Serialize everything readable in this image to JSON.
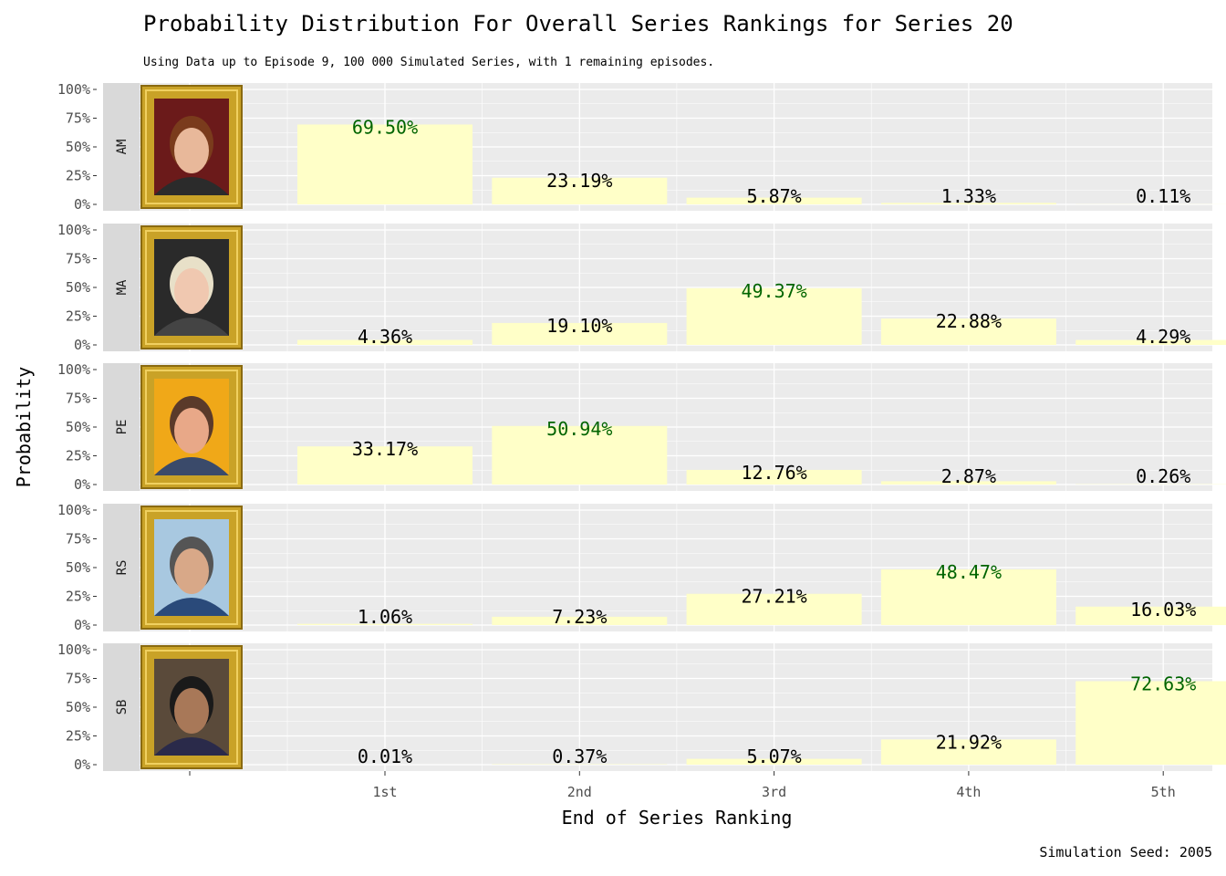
{
  "colors": {
    "panel_bg": "#ebebeb",
    "grid": "#ffffff",
    "bar_fill": "#ffffc8",
    "label_default": "#000000",
    "label_max": "#006400",
    "strip_bg": "#d9d9d9",
    "frame_gold": "#c9a227"
  },
  "chart_data": {
    "type": "bar",
    "title": "Probability Distribution For Overall Series Rankings for Series 20",
    "subtitle": "Using Data up to Episode 9, 100 000 Simulated Series, with 1 remaining episodes.",
    "xlabel": "End of Series Ranking",
    "ylabel": "Probability",
    "caption": "Simulation Seed: 2005",
    "categories": [
      "1st",
      "2nd",
      "3rd",
      "4th",
      "5th"
    ],
    "y_ticks": [
      "0%",
      "25%",
      "50%",
      "75%",
      "100%"
    ],
    "ylim": [
      0,
      100
    ],
    "series": [
      {
        "name": "AM",
        "values": [
          69.5,
          23.19,
          5.87,
          1.33,
          0.11
        ],
        "labels": [
          "69.50%",
          "23.19%",
          "5.87%",
          "1.33%",
          "0.11%"
        ],
        "max_index": 0
      },
      {
        "name": "MA",
        "values": [
          4.36,
          19.1,
          49.37,
          22.88,
          4.29
        ],
        "labels": [
          "4.36%",
          "19.10%",
          "49.37%",
          "22.88%",
          "4.29%"
        ],
        "max_index": 2
      },
      {
        "name": "PE",
        "values": [
          33.17,
          50.94,
          12.76,
          2.87,
          0.26
        ],
        "labels": [
          "33.17%",
          "50.94%",
          "12.76%",
          "2.87%",
          "0.26%"
        ],
        "max_index": 1
      },
      {
        "name": "RS",
        "values": [
          1.06,
          7.23,
          27.21,
          48.47,
          16.03
        ],
        "labels": [
          "1.06%",
          "7.23%",
          "27.21%",
          "48.47%",
          "16.03%"
        ],
        "max_index": 3
      },
      {
        "name": "SB",
        "values": [
          0.01,
          0.37,
          5.07,
          21.92,
          72.63
        ],
        "labels": [
          "0.01%",
          "0.37%",
          "5.07%",
          "21.92%",
          "72.63%"
        ],
        "max_index": 4
      }
    ],
    "portraits": [
      {
        "name": "AM",
        "bg": "#6b1a1a",
        "skin": "#e8b89a",
        "hair": "#7a3b1c",
        "shirt": "#2b2b2b"
      },
      {
        "name": "MA",
        "bg": "#2a2a2a",
        "skin": "#f0c8b0",
        "hair": "#e8e0c8",
        "shirt": "#444444"
      },
      {
        "name": "PE",
        "bg": "#f0a818",
        "skin": "#e8a888",
        "hair": "#5a3a2a",
        "shirt": "#3a4a6a"
      },
      {
        "name": "RS",
        "bg": "#a8c8e0",
        "skin": "#d8a888",
        "hair": "#555555",
        "shirt": "#2a4a7a"
      },
      {
        "name": "SB",
        "bg": "#5a4a3a",
        "skin": "#a87858",
        "hair": "#1a1a1a",
        "shirt": "#2a2a4a"
      }
    ]
  }
}
